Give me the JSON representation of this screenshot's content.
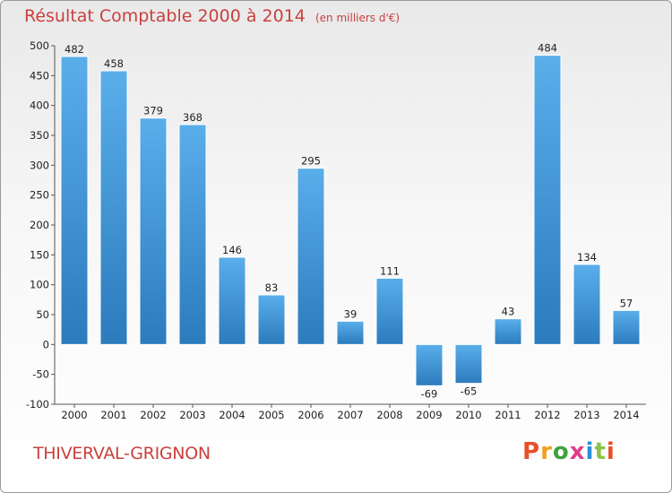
{
  "header": {
    "title": "Résultat Comptable 2000 à 2014",
    "unit": "(en milliers d'€)"
  },
  "footer": {
    "city": "THIVERVAL-GRIGNON",
    "logo_text": "Proxiti",
    "logo_colors": [
      "#e8502a",
      "#f0a020",
      "#3da33b",
      "#e03c8a",
      "#2a8fd8",
      "#8bc34a",
      "#e8502a"
    ]
  },
  "colors": {
    "title": "#c8413e",
    "bar_light": "#5aaeea",
    "bar_dark": "#2b7bbd"
  },
  "chart_data": {
    "type": "bar",
    "categories": [
      "2000",
      "2001",
      "2002",
      "2003",
      "2004",
      "2005",
      "2006",
      "2007",
      "2008",
      "2009",
      "2010",
      "2011",
      "2012",
      "2013",
      "2014"
    ],
    "values": [
      482,
      458,
      379,
      368,
      146,
      83,
      295,
      39,
      111,
      -69,
      -65,
      43,
      484,
      134,
      57
    ],
    "title": "Résultat Comptable 2000 à 2014",
    "subtitle": "(en milliers d'€)",
    "ylim": [
      -100,
      500
    ],
    "yticks": [
      -100,
      -50,
      0,
      50,
      100,
      150,
      200,
      250,
      300,
      350,
      400,
      450,
      500
    ],
    "grid": false
  }
}
